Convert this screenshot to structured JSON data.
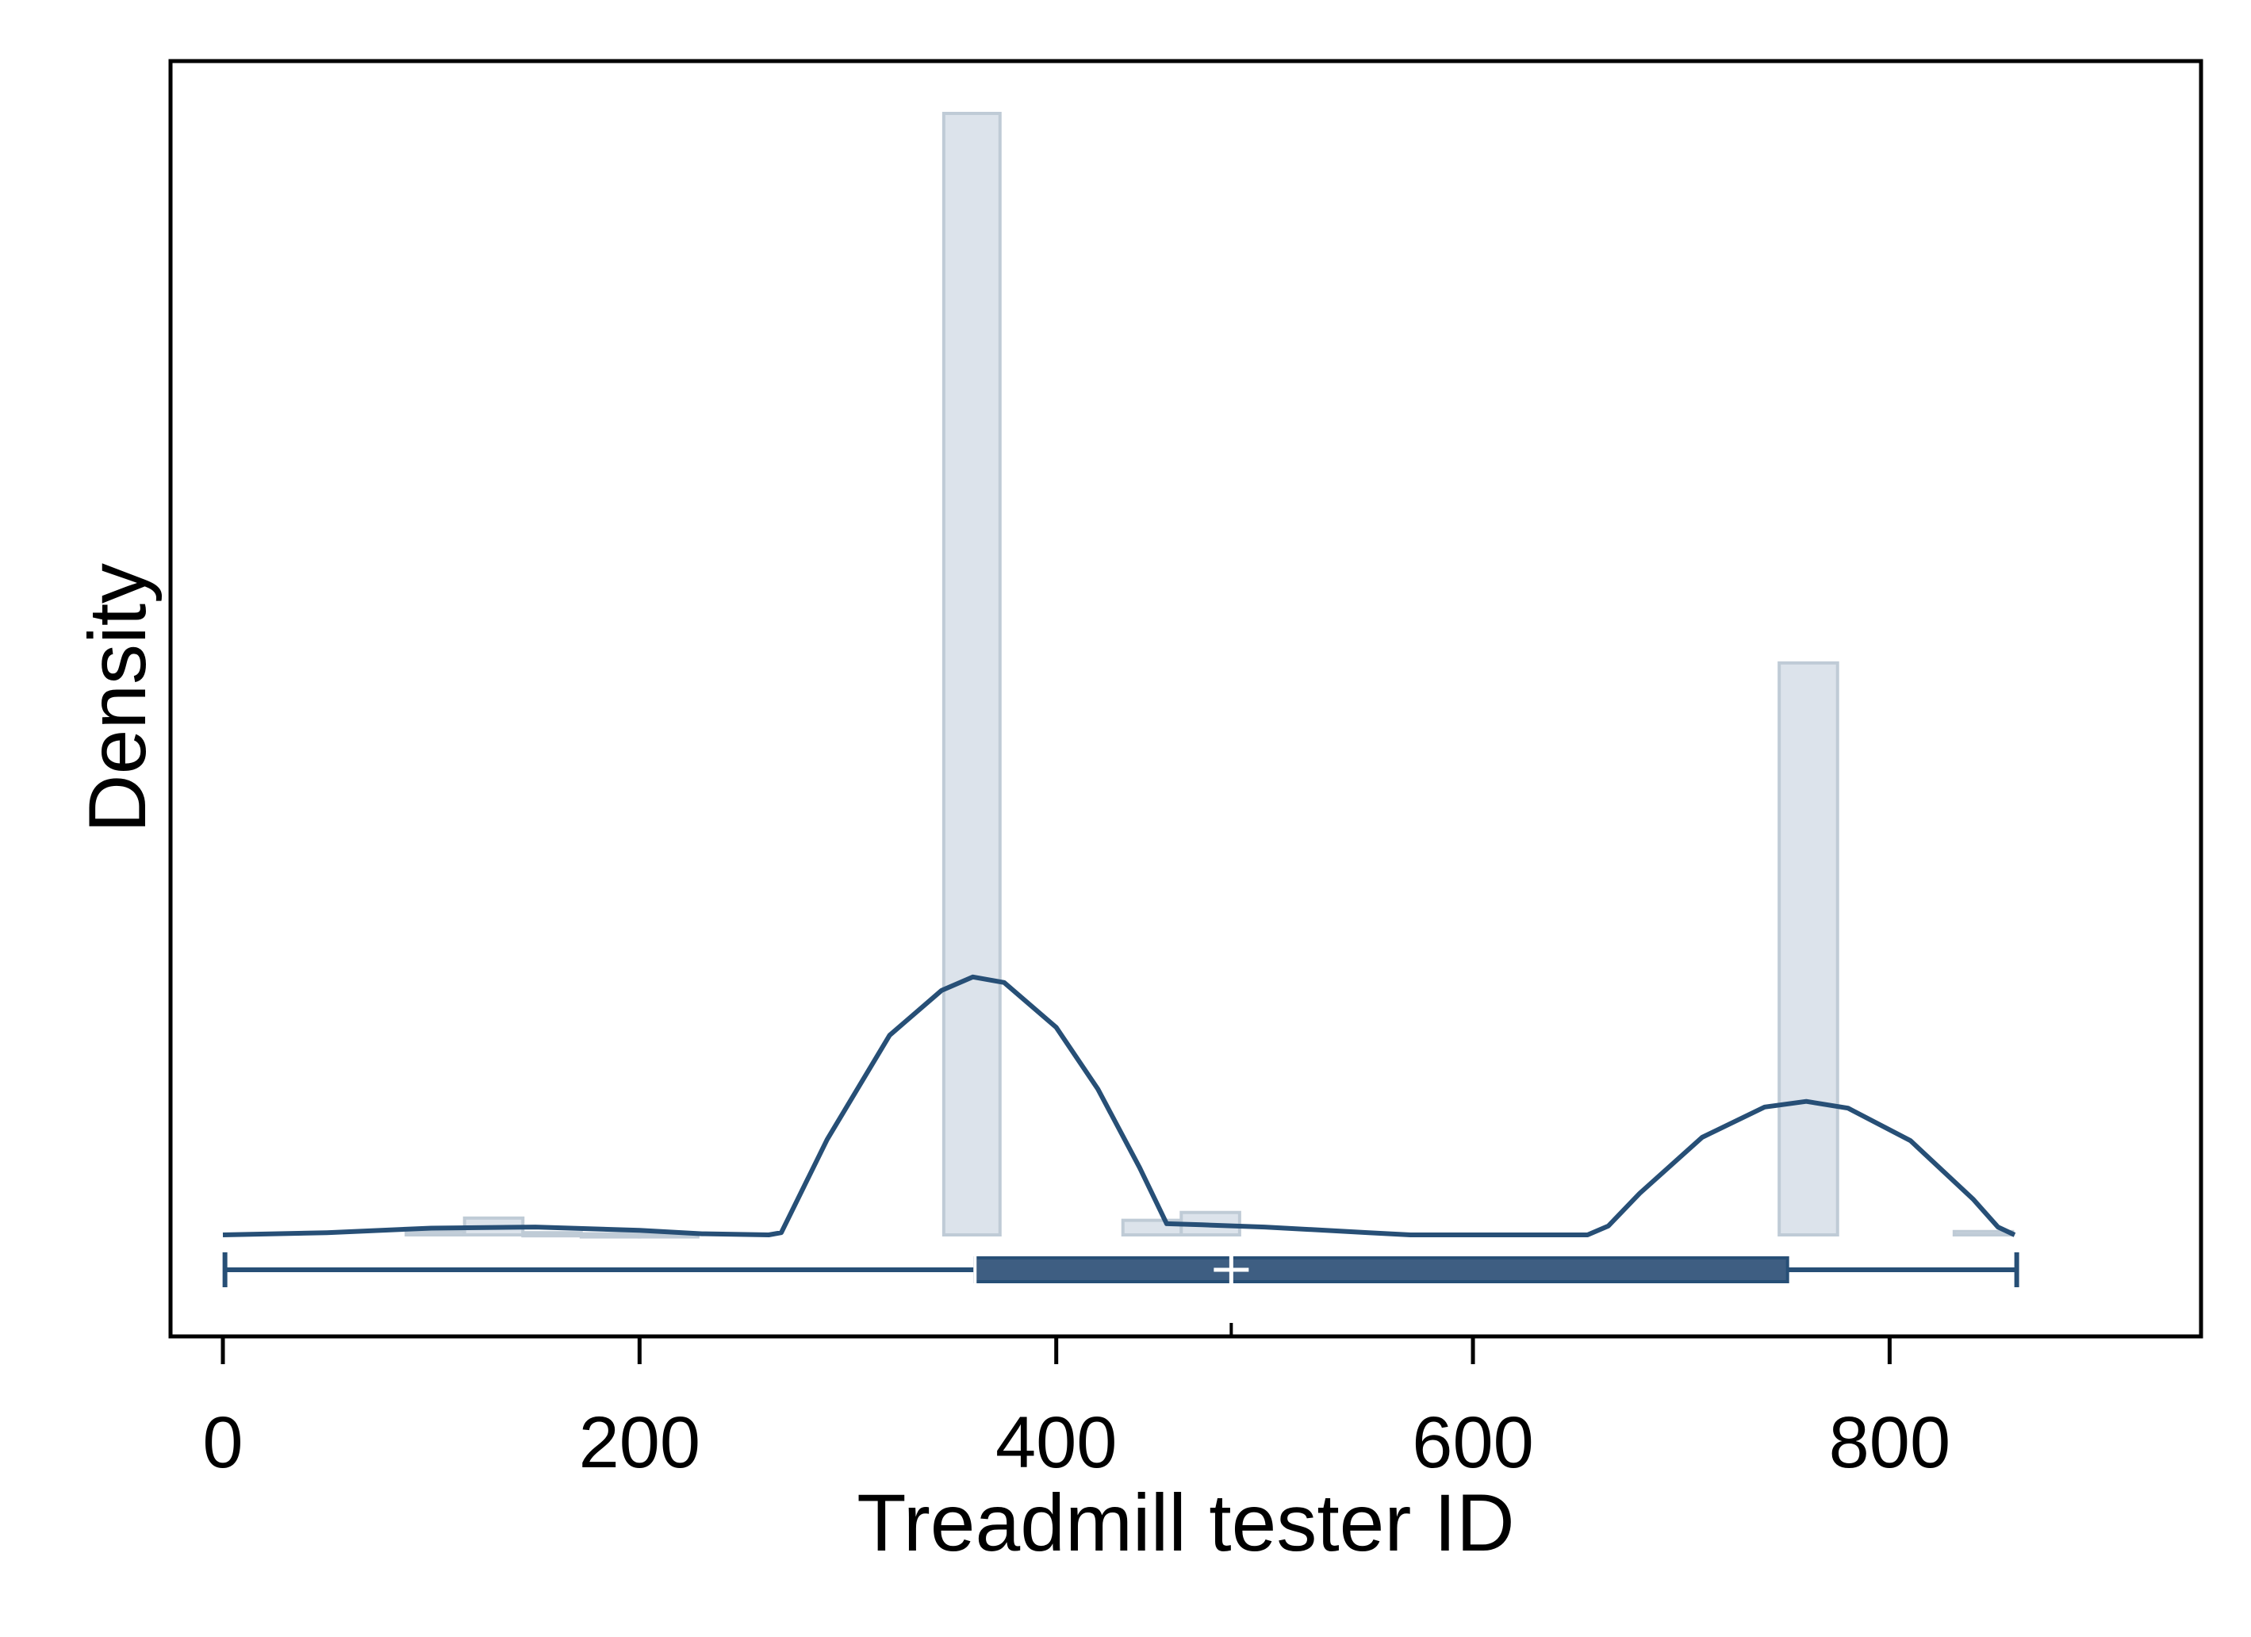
{
  "chart_data": {
    "type": "bar",
    "xlabel": "Treadmill tester ID",
    "ylabel": "Density",
    "xlim": [
      -12,
      880
    ],
    "ylim": [
      0,
      1.0
    ],
    "xticks": [
      "0",
      "200",
      "400",
      "600",
      "800"
    ],
    "xtick_values": [
      0,
      200,
      400,
      600,
      800
    ],
    "grid": false,
    "histogram": {
      "bin_edges": [
        88,
        116,
        144,
        172,
        200,
        228,
        256,
        284,
        312,
        346,
        373,
        402,
        432,
        460,
        488,
        516,
        544,
        572,
        600,
        628,
        656,
        684,
        712,
        747,
        775,
        803,
        831,
        859
      ],
      "heights": [
        0.003,
        0.015,
        0.002,
        0.001,
        0.001,
        0,
        0,
        0,
        0,
        1.0,
        0,
        0,
        0.013,
        0.02,
        0,
        0,
        0,
        0,
        0,
        0,
        0,
        0,
        0,
        0.51,
        0,
        0,
        0.003
      ],
      "fill": "#dce3eb",
      "stroke": "#bfcbd6"
    },
    "density_curve": {
      "x": [
        0,
        50,
        100,
        150,
        200,
        230,
        262,
        268,
        290,
        320,
        345,
        360,
        375,
        400,
        420,
        440,
        453,
        470,
        500,
        550,
        570,
        600,
        640,
        655,
        665,
        680,
        710,
        740,
        760,
        780,
        810,
        840,
        852,
        860
      ],
      "y": [
        0,
        0.002,
        0.006,
        0.007,
        0.004,
        0.001,
        0,
        0.002,
        0.085,
        0.178,
        0.218,
        0.23,
        0.225,
        0.185,
        0.13,
        0.06,
        0.01,
        0.009,
        0.007,
        0.002,
        0,
        0,
        0,
        0,
        0.008,
        0.037,
        0.087,
        0.114,
        0.119,
        0.113,
        0.084,
        0.032,
        0.007,
        0
      ],
      "color": "#274f76"
    },
    "boxplot": {
      "min": 1,
      "q1": 361,
      "median": 484,
      "q3": 751,
      "max": 861,
      "color": "#274f76"
    },
    "mean_marker": 484
  }
}
